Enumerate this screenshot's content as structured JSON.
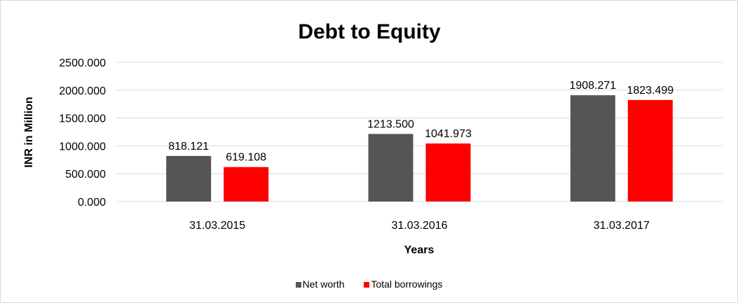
{
  "chart_data": {
    "type": "bar",
    "title": "Debt to Equity",
    "xlabel": "Years",
    "ylabel": "INR in Million",
    "categories": [
      "31.03.2015",
      "31.03.2016",
      "31.03.2017"
    ],
    "series": [
      {
        "name": "Net worth",
        "values": [
          818.121,
          1213.5,
          1908.271
        ],
        "labels": [
          "818.121",
          "1213.500",
          "1908.271"
        ],
        "color": "#555555"
      },
      {
        "name": "Total borrowings",
        "values": [
          619.108,
          1041.973,
          1823.499
        ],
        "labels": [
          "619.108",
          "1041.973",
          "1823.499"
        ],
        "color": "#ff0000"
      }
    ],
    "ylim": [
      0,
      2500
    ],
    "yticks": [
      "0.000",
      "500.000",
      "1000.000",
      "1500.000",
      "2000.000",
      "2500.000"
    ],
    "grid": true,
    "legend": "bottom"
  }
}
